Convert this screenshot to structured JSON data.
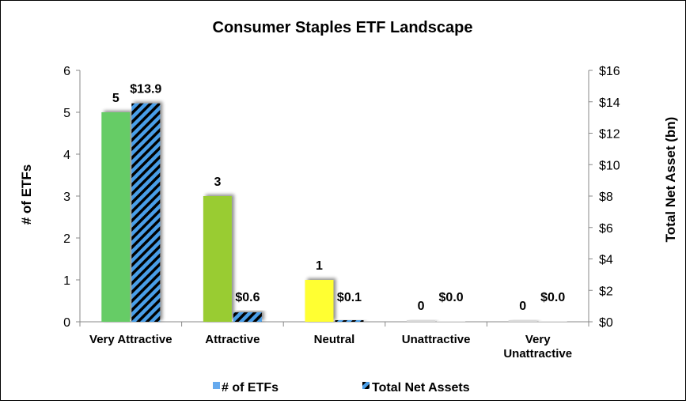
{
  "chart_data": {
    "type": "bar",
    "title": "Consumer Staples ETF Landscape",
    "categories": [
      [
        "Very Attractive"
      ],
      [
        "Attractive"
      ],
      [
        "Neutral"
      ],
      [
        "Unattractive"
      ],
      [
        "Very",
        "Unattractive"
      ]
    ],
    "series": [
      {
        "name": "# of ETFs",
        "axis": "left",
        "values": [
          5,
          3,
          1,
          0,
          0
        ],
        "labels": [
          "5",
          "3",
          "1",
          "0",
          "0"
        ],
        "colors": [
          "#66cc66",
          "#99cc33",
          "#ffff33",
          "#d9d9d9",
          "#d9d9d9"
        ],
        "legend_color": "#66aaee"
      },
      {
        "name": "Total Net Assets",
        "axis": "right",
        "values": [
          13.9,
          0.6,
          0.1,
          0.0,
          0.0
        ],
        "labels": [
          "$13.9",
          "$0.6",
          "$0.1",
          "$0.0",
          "$0.0"
        ],
        "pattern": "diagonal-stripes",
        "pattern_colors": [
          "#4a9ee8",
          "#000000"
        ]
      }
    ],
    "y_left": {
      "label": "# of ETFs",
      "ylim": [
        0,
        6
      ],
      "ticks": [
        "0",
        "1",
        "2",
        "3",
        "4",
        "5",
        "6"
      ]
    },
    "y_right": {
      "label": "Total Net Asset (bn)",
      "ylim": [
        0,
        16
      ],
      "ticks": [
        "$0",
        "$2",
        "$4",
        "$6",
        "$8",
        "$10",
        "$12",
        "$14",
        "$16"
      ]
    },
    "grid": false,
    "legend_position": "bottom"
  }
}
